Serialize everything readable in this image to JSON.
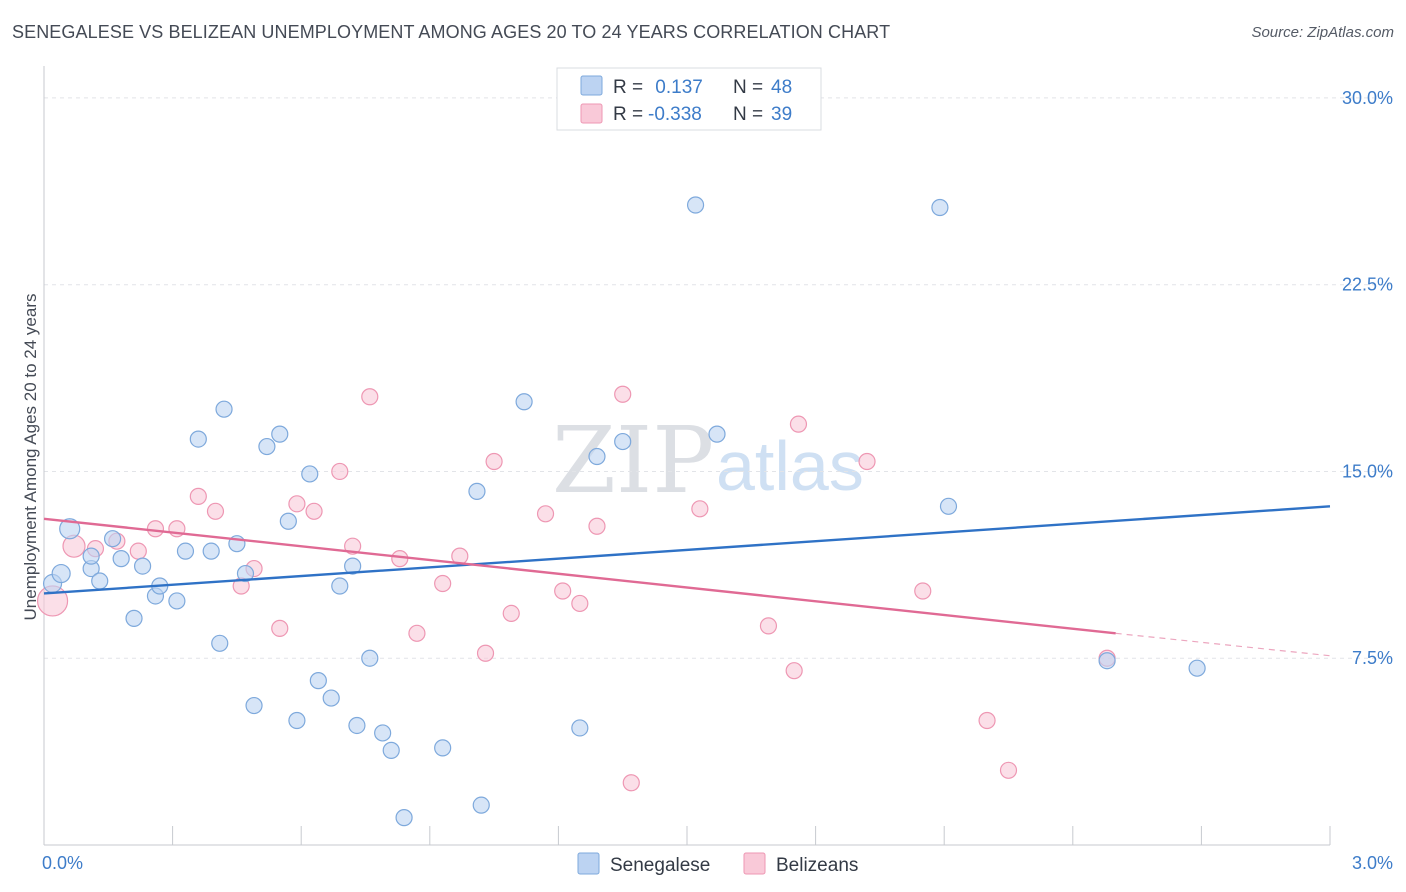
{
  "title": "SENEGALESE VS BELIZEAN UNEMPLOYMENT AMONG AGES 20 TO 24 YEARS CORRELATION CHART",
  "source": "Source: ZipAtlas.com",
  "watermark": {
    "zip": "ZIP",
    "atlas": "atlas"
  },
  "colors": {
    "blue_fill": "#bcd3f2",
    "blue_stroke": "#7ea9dc",
    "blue_line": "#2f72c6",
    "pink_fill": "#f9c9d8",
    "pink_stroke": "#ee97b3",
    "pink_line": "#e06a94",
    "grid": "#e2e4e8",
    "axis": "#c7cacf",
    "label": "#3d7cc9"
  },
  "legend": {
    "rows": [
      {
        "r_label": "R = ",
        "r_value": " 0.137",
        "n_label": "N = ",
        "n_value": "48"
      },
      {
        "r_label": "R = ",
        "r_value": "-0.338",
        "n_label": "N = ",
        "n_value": "39"
      }
    ]
  },
  "chart_data": {
    "type": "scatter",
    "title": "SENEGALESE VS BELIZEAN UNEMPLOYMENT AMONG AGES 20 TO 24 YEARS CORRELATION CHART",
    "xlabel": "",
    "ylabel": "Unemployment Among Ages 20 to 24 years",
    "xlim": [
      0,
      3.0
    ],
    "ylim": [
      0,
      30.8
    ],
    "x_tick_labels": [
      {
        "value": 0,
        "label": "0.0%"
      },
      {
        "value": 3.0,
        "label": "3.0%"
      }
    ],
    "y_tick_labels": [
      {
        "value": 7.5,
        "label": "7.5%"
      },
      {
        "value": 15.0,
        "label": "15.0%"
      },
      {
        "value": 22.5,
        "label": "22.5%"
      },
      {
        "value": 30.0,
        "label": "30.0%"
      }
    ],
    "y_gridlines": [
      7.5,
      15.0,
      22.5,
      30.0
    ],
    "x_minor_ticks": [
      0.3,
      0.6,
      0.9,
      1.2,
      1.5,
      1.8,
      2.1,
      2.4,
      2.7,
      3.0
    ],
    "series": [
      {
        "name": "Senegalese",
        "color_key": "blue",
        "r": 0.137,
        "n": 48,
        "trend": {
          "x": [
            0.0,
            3.0
          ],
          "y": [
            10.1,
            13.6
          ]
        },
        "points": [
          {
            "x": 0.02,
            "y": 10.5,
            "s": 9
          },
          {
            "x": 0.04,
            "y": 10.9,
            "s": 9
          },
          {
            "x": 0.06,
            "y": 12.7,
            "s": 10
          },
          {
            "x": 0.11,
            "y": 11.1
          },
          {
            "x": 0.11,
            "y": 11.6
          },
          {
            "x": 0.13,
            "y": 10.6
          },
          {
            "x": 0.16,
            "y": 12.3
          },
          {
            "x": 0.18,
            "y": 11.5
          },
          {
            "x": 0.21,
            "y": 9.1
          },
          {
            "x": 0.23,
            "y": 11.2
          },
          {
            "x": 0.26,
            "y": 10.0
          },
          {
            "x": 0.27,
            "y": 10.4
          },
          {
            "x": 0.31,
            "y": 9.8
          },
          {
            "x": 0.33,
            "y": 11.8
          },
          {
            "x": 0.36,
            "y": 16.3
          },
          {
            "x": 0.39,
            "y": 11.8
          },
          {
            "x": 0.41,
            "y": 8.1
          },
          {
            "x": 0.42,
            "y": 17.5
          },
          {
            "x": 0.45,
            "y": 12.1
          },
          {
            "x": 0.47,
            "y": 10.9
          },
          {
            "x": 0.49,
            "y": 5.6
          },
          {
            "x": 0.52,
            "y": 16.0
          },
          {
            "x": 0.55,
            "y": 16.5
          },
          {
            "x": 0.57,
            "y": 13.0
          },
          {
            "x": 0.59,
            "y": 5.0
          },
          {
            "x": 0.62,
            "y": 14.9
          },
          {
            "x": 0.64,
            "y": 6.6
          },
          {
            "x": 0.67,
            "y": 5.9
          },
          {
            "x": 0.69,
            "y": 10.4
          },
          {
            "x": 0.72,
            "y": 11.2
          },
          {
            "x": 0.73,
            "y": 4.8
          },
          {
            "x": 0.76,
            "y": 7.5
          },
          {
            "x": 0.79,
            "y": 4.5
          },
          {
            "x": 0.81,
            "y": 3.8
          },
          {
            "x": 0.84,
            "y": 1.1
          },
          {
            "x": 0.93,
            "y": 3.9
          },
          {
            "x": 1.01,
            "y": 14.2
          },
          {
            "x": 1.02,
            "y": 1.6
          },
          {
            "x": 1.12,
            "y": 17.8
          },
          {
            "x": 1.25,
            "y": 4.7
          },
          {
            "x": 1.29,
            "y": 15.6
          },
          {
            "x": 1.35,
            "y": 16.2
          },
          {
            "x": 1.52,
            "y": 25.7
          },
          {
            "x": 1.57,
            "y": 16.5
          },
          {
            "x": 2.09,
            "y": 25.6
          },
          {
            "x": 2.11,
            "y": 13.6
          },
          {
            "x": 2.48,
            "y": 7.4
          },
          {
            "x": 2.69,
            "y": 7.1
          }
        ]
      },
      {
        "name": "Belizeans",
        "color_key": "pink",
        "r": -0.338,
        "n": 39,
        "trend": {
          "x": [
            0.0,
            2.5
          ],
          "y": [
            13.1,
            8.5
          ]
        },
        "trend_dashed": {
          "x": [
            2.5,
            3.0
          ],
          "y": [
            8.5,
            7.6
          ]
        },
        "points": [
          {
            "x": 0.02,
            "y": 9.8,
            "s": 15
          },
          {
            "x": 0.07,
            "y": 12.0,
            "s": 11
          },
          {
            "x": 0.12,
            "y": 11.9
          },
          {
            "x": 0.17,
            "y": 12.2
          },
          {
            "x": 0.22,
            "y": 11.8
          },
          {
            "x": 0.26,
            "y": 12.7
          },
          {
            "x": 0.31,
            "y": 12.7
          },
          {
            "x": 0.36,
            "y": 14.0
          },
          {
            "x": 0.4,
            "y": 13.4
          },
          {
            "x": 0.46,
            "y": 10.4
          },
          {
            "x": 0.49,
            "y": 11.1
          },
          {
            "x": 0.55,
            "y": 8.7
          },
          {
            "x": 0.59,
            "y": 13.7
          },
          {
            "x": 0.63,
            "y": 13.4
          },
          {
            "x": 0.69,
            "y": 15.0
          },
          {
            "x": 0.72,
            "y": 12.0
          },
          {
            "x": 0.76,
            "y": 18.0
          },
          {
            "x": 0.83,
            "y": 11.5
          },
          {
            "x": 0.87,
            "y": 8.5
          },
          {
            "x": 0.93,
            "y": 10.5
          },
          {
            "x": 0.97,
            "y": 11.6
          },
          {
            "x": 1.03,
            "y": 7.7
          },
          {
            "x": 1.05,
            "y": 15.4
          },
          {
            "x": 1.09,
            "y": 9.3
          },
          {
            "x": 1.17,
            "y": 13.3
          },
          {
            "x": 1.21,
            "y": 10.2
          },
          {
            "x": 1.25,
            "y": 9.7
          },
          {
            "x": 1.29,
            "y": 12.8
          },
          {
            "x": 1.35,
            "y": 18.1
          },
          {
            "x": 1.37,
            "y": 2.5
          },
          {
            "x": 1.53,
            "y": 13.5
          },
          {
            "x": 1.69,
            "y": 8.8
          },
          {
            "x": 1.76,
            "y": 16.9
          },
          {
            "x": 1.75,
            "y": 7.0
          },
          {
            "x": 1.92,
            "y": 15.4
          },
          {
            "x": 2.05,
            "y": 10.2
          },
          {
            "x": 2.2,
            "y": 5.0
          },
          {
            "x": 2.25,
            "y": 3.0
          },
          {
            "x": 2.48,
            "y": 7.5
          }
        ]
      }
    ],
    "legend_bottom": [
      "Senegalese",
      "Belizeans"
    ]
  }
}
